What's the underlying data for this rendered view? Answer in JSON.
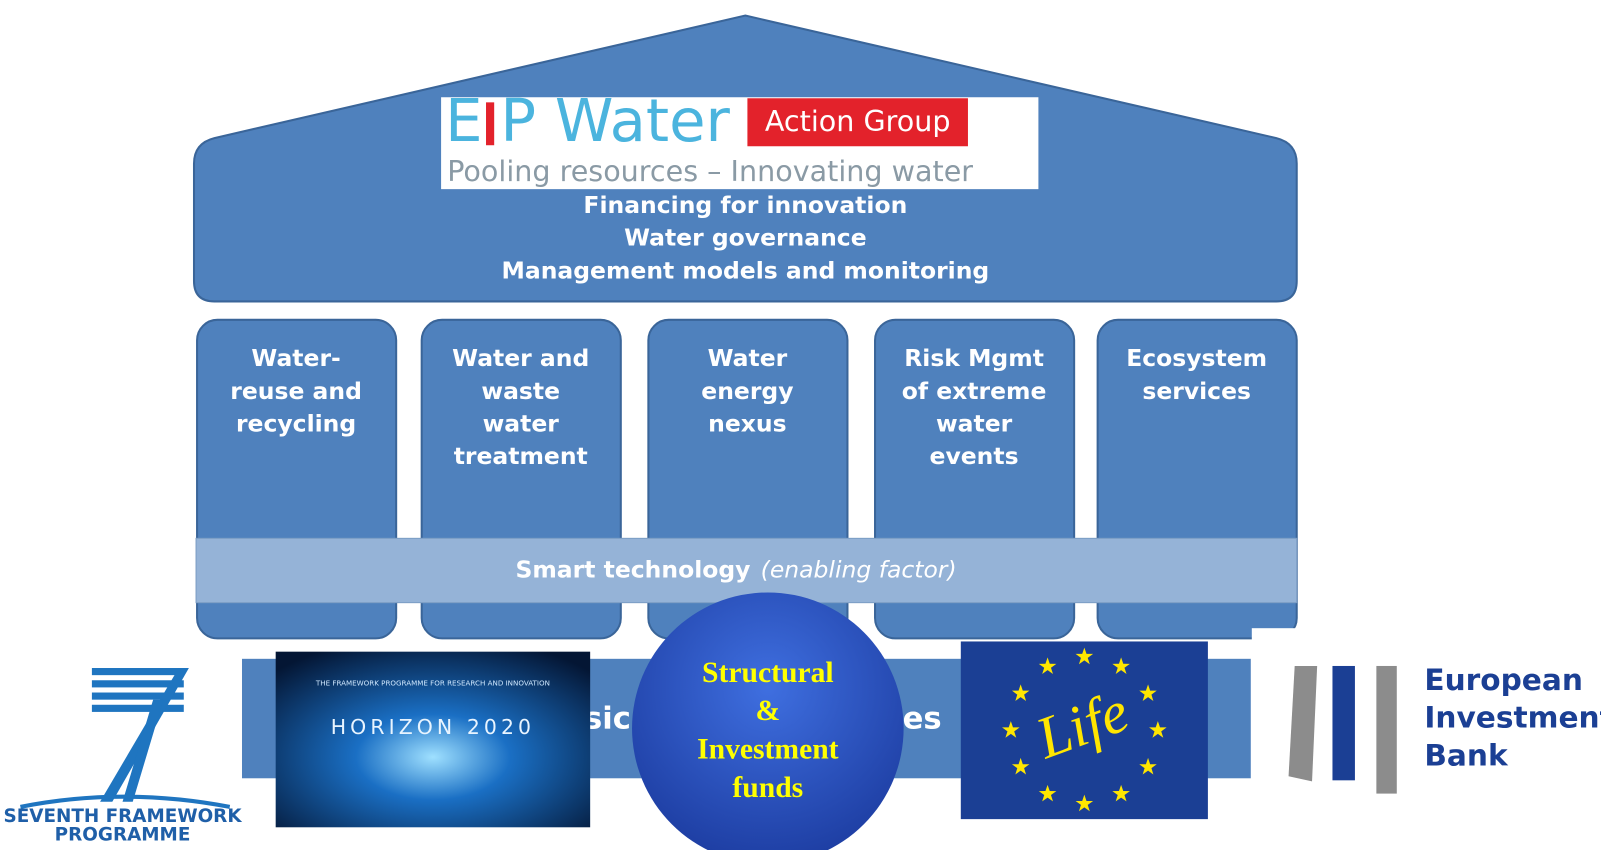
{
  "logo": {
    "title_parts": [
      "E",
      "P Water"
    ],
    "badge": "Action Group",
    "tagline": "Pooling resources – Innovating water"
  },
  "roof": {
    "items": [
      "Financing for innovation",
      "Water governance",
      "Management models and monitoring"
    ]
  },
  "pillars": [
    {
      "lines": [
        "Water-",
        "reuse and",
        "recycling"
      ]
    },
    {
      "lines": [
        "Water and",
        "waste",
        "water",
        "treatment"
      ]
    },
    {
      "lines": [
        "Water",
        "energy",
        "nexus"
      ]
    },
    {
      "lines": [
        "Risk Mgmt",
        "of extreme",
        "water",
        "events"
      ]
    },
    {
      "lines": [
        "Ecosystem",
        "services"
      ]
    }
  ],
  "enabler": {
    "label": "Smart technology",
    "note": "(enabling factor)"
  },
  "base": {
    "fragments": [
      "sic",
      "es"
    ]
  },
  "funds": {
    "fp7": [
      "SEVENTH FRAMEWORK",
      "PROGRAMME"
    ],
    "horizon": {
      "caption": "THE FRAMEWORK PROGRAMME FOR RESEARCH AND INNOVATION",
      "name": "HORIZON 2020"
    },
    "structural": [
      "Structural",
      "&",
      "Investment",
      "funds"
    ],
    "life": "Life",
    "eib": [
      "European",
      "Investment",
      "Bank"
    ]
  }
}
